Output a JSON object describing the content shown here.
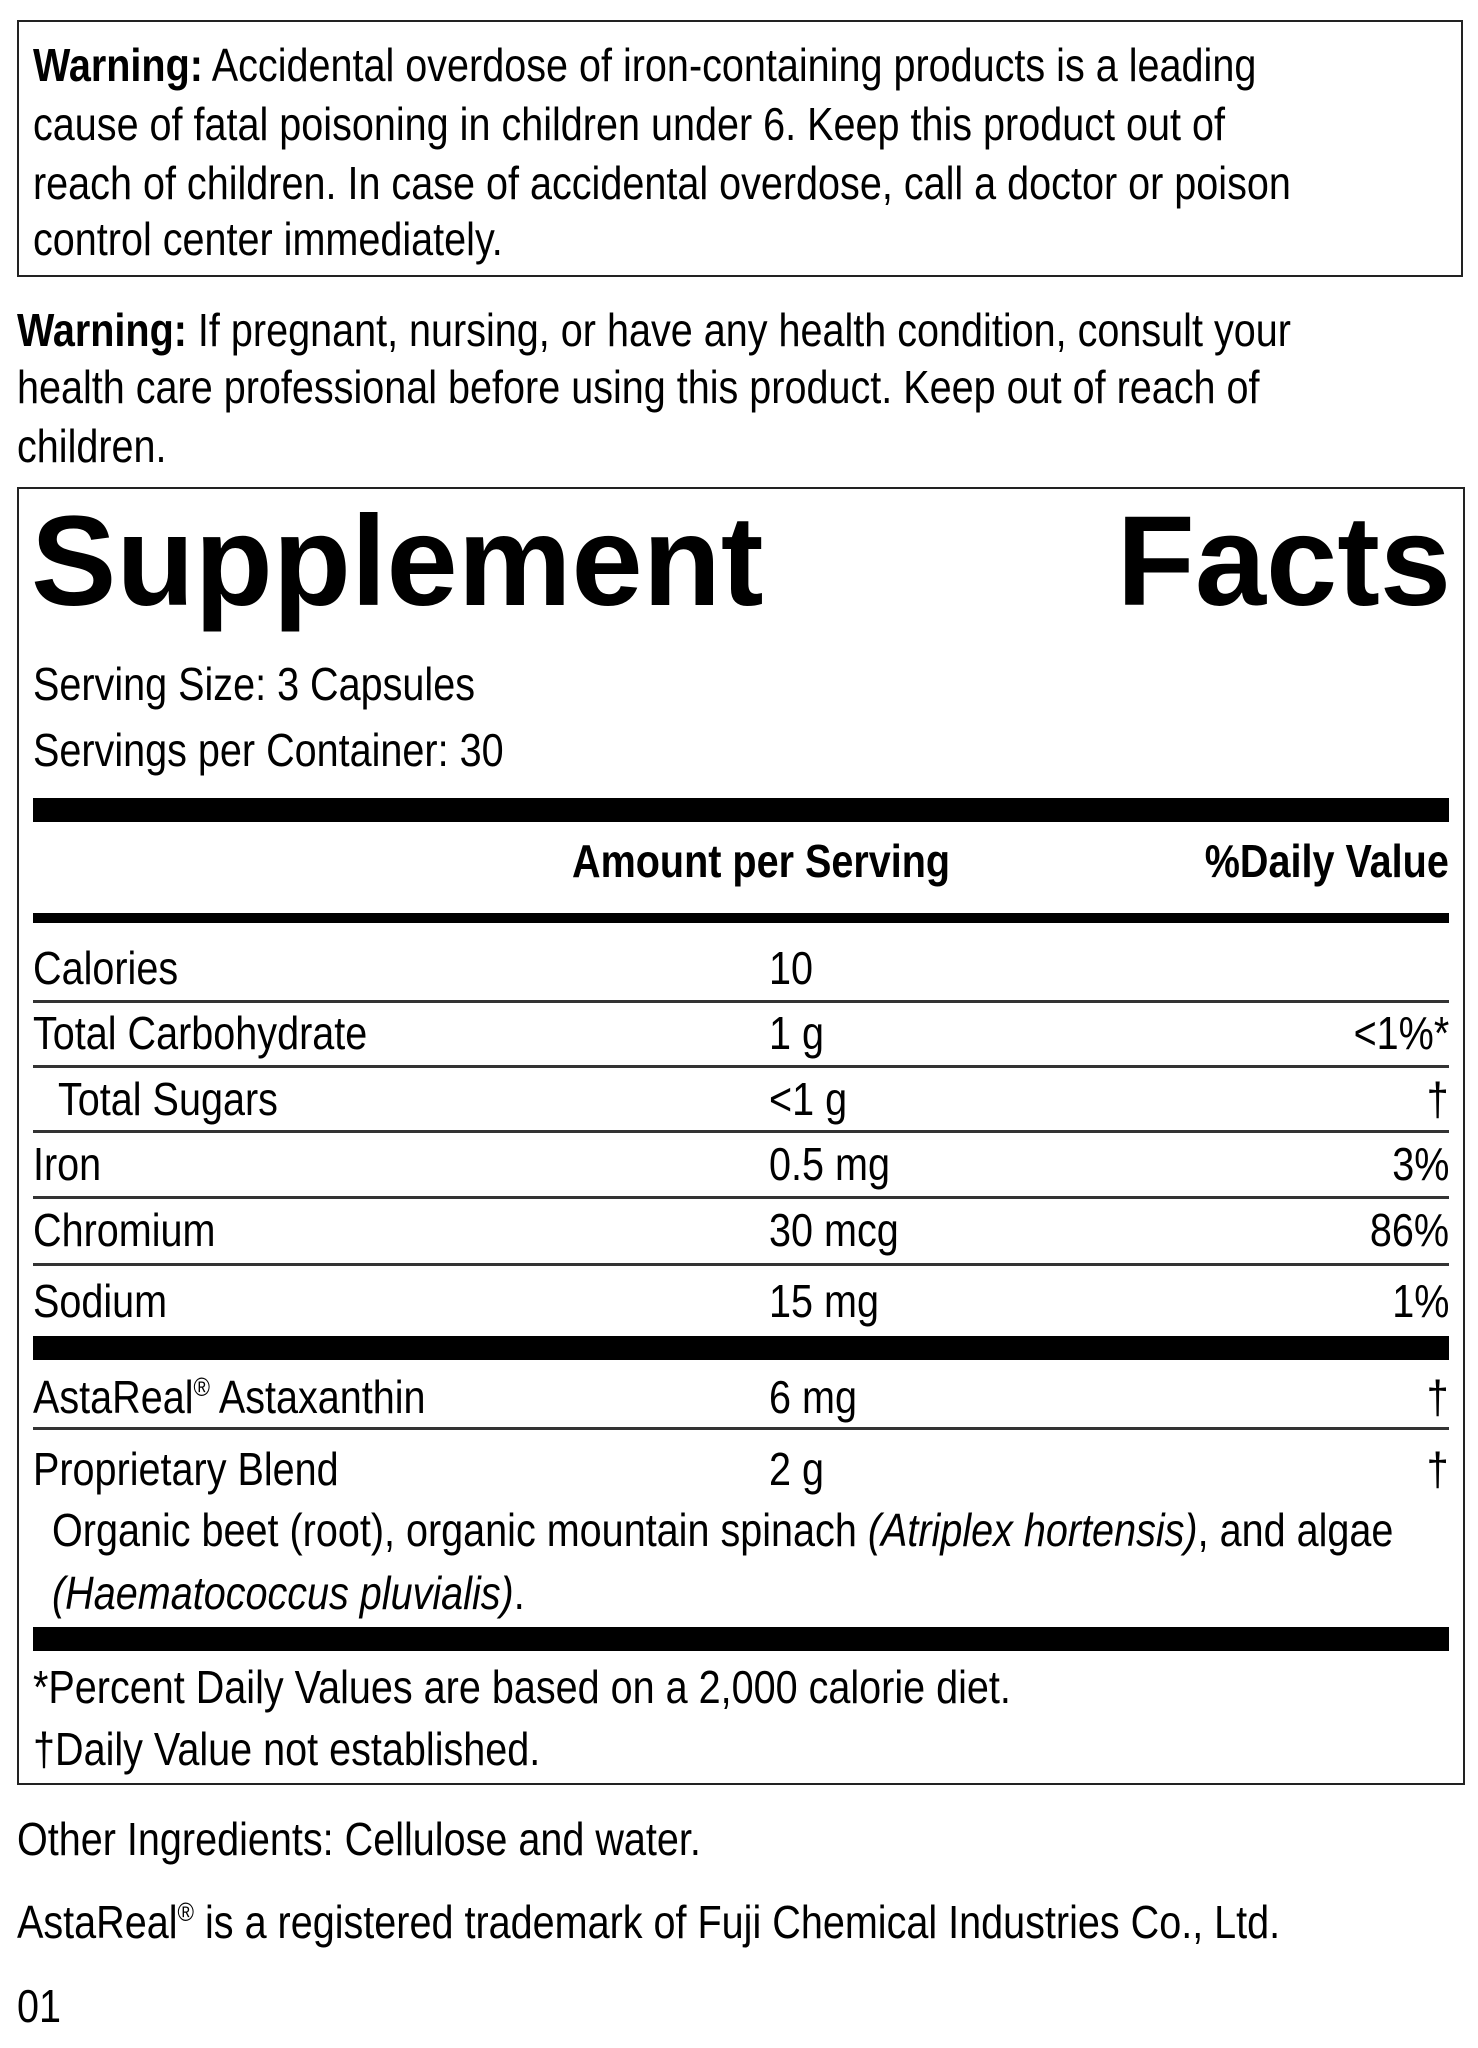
{
  "warning_iron": {
    "label": "Warning:",
    "lines": [
      "Accidental overdose of iron-containing products is a leading",
      "cause of fatal poisoning in children under 6. Keep this product out of",
      "reach of children. In case of accidental overdose, call a doctor or poison",
      "control center immediately."
    ]
  },
  "warning_general": {
    "label": "Warning:",
    "lines": [
      "If pregnant, nursing, or have any health condition, consult your",
      "health care professional before using this product. Keep out of reach of",
      "children."
    ]
  },
  "facts": {
    "title_word1": "Supplement",
    "title_word2": "Facts",
    "serving_size": "Serving Size: 3 Capsules",
    "servings_per_container": "Servings per Container: 30",
    "header_amount": "Amount per Serving",
    "header_dv": "%Daily Value",
    "rows": [
      {
        "name": "Calories",
        "amount": "10",
        "dv": ""
      },
      {
        "name": "Total Carbohydrate",
        "amount": "1 g",
        "dv": "<1%*"
      },
      {
        "name": "Total Sugars",
        "amount": "<1 g",
        "dv": "†"
      },
      {
        "name": "Iron",
        "amount": "0.5 mg",
        "dv": "3%"
      },
      {
        "name": "Chromium",
        "amount": "30 mcg",
        "dv": "86%"
      },
      {
        "name": "Sodium",
        "amount": "15 mg",
        "dv": "1%"
      }
    ],
    "astareal": {
      "name": "AstaReal",
      "reg": "®",
      "name_rest": " Astaxanthin",
      "amount": "6 mg",
      "dv": "†"
    },
    "blend": {
      "name": "Proprietary Blend",
      "amount": "2 g",
      "dv": "†",
      "desc1": "Organic beet (root), organic mountain spinach ",
      "desc1_italic": "(Atriplex hortensis)",
      "desc1_end": ", and algae",
      "desc2_italic": "(Haematococcus pluvialis)",
      "desc2_end": "."
    },
    "footnote1": "*Percent Daily Values are based on a 2,000 calorie diet.",
    "footnote2": "†Daily Value not established."
  },
  "other_ingredients": "Other Ingredients: Cellulose and water.",
  "trademark": {
    "brand": "AstaReal",
    "reg": "®",
    "text": " is a registered trademark of Fuji Chemical Industries Co., Ltd."
  },
  "code": "01"
}
